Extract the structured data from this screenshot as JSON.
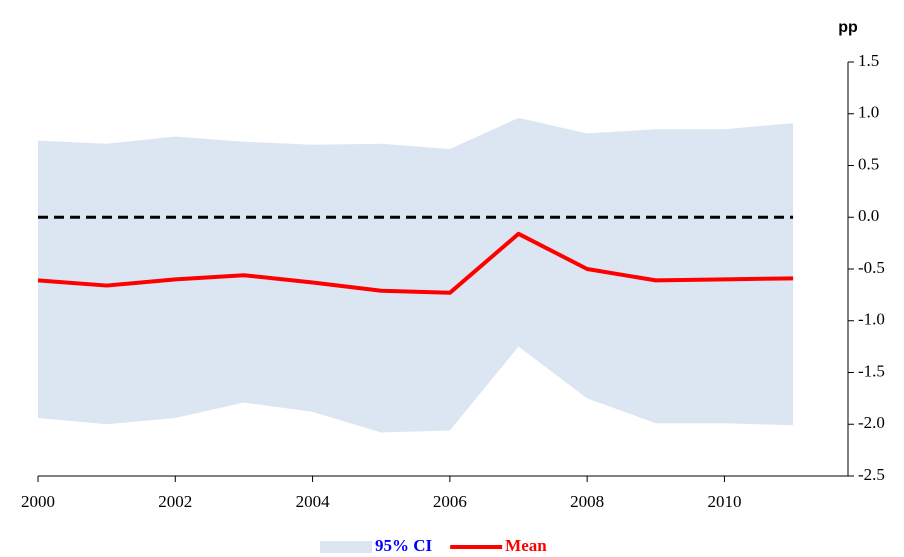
{
  "chart_data": {
    "type": "line",
    "y_label": "pp",
    "x": [
      2000,
      2001,
      2002,
      2003,
      2004,
      2005,
      2006,
      2007,
      2008,
      2009,
      2010,
      2011
    ],
    "series": [
      {
        "name": "95% CI",
        "color": "#dce6f2",
        "legend_text_color": "#0000ff",
        "upper": [
          0.74,
          0.71,
          0.78,
          0.73,
          0.7,
          0.71,
          0.66,
          0.96,
          0.81,
          0.85,
          0.85,
          0.91
        ],
        "lower": [
          -1.94,
          -2.0,
          -1.94,
          -1.79,
          -1.88,
          -2.08,
          -2.06,
          -1.25,
          -1.75,
          -1.99,
          -1.99,
          -2.01
        ]
      },
      {
        "name": "Mean",
        "color": "#ff0000",
        "legend_text_color": "#ff0000",
        "values": [
          -0.61,
          -0.66,
          -0.6,
          -0.56,
          -0.63,
          -0.71,
          -0.73,
          -0.16,
          -0.5,
          -0.61,
          -0.6,
          -0.59
        ]
      }
    ],
    "reference_line": 0,
    "xlim": [
      2000,
      2011.8
    ],
    "xticks": [
      2000,
      2002,
      2004,
      2006,
      2008,
      2010
    ],
    "ylim": [
      -2.5,
      1.5
    ],
    "yticks": [
      1.5,
      {
        "value": 1,
        "label": "1.0"
      },
      0.5,
      {
        "value": 0,
        "label": "0.0"
      },
      -0.5,
      {
        "value": -1,
        "label": "-1.0"
      },
      -1.5,
      {
        "value": -2,
        "label": "-2.0"
      },
      -2.5
    ],
    "y_axis_side": "right",
    "legend": "bottom"
  }
}
